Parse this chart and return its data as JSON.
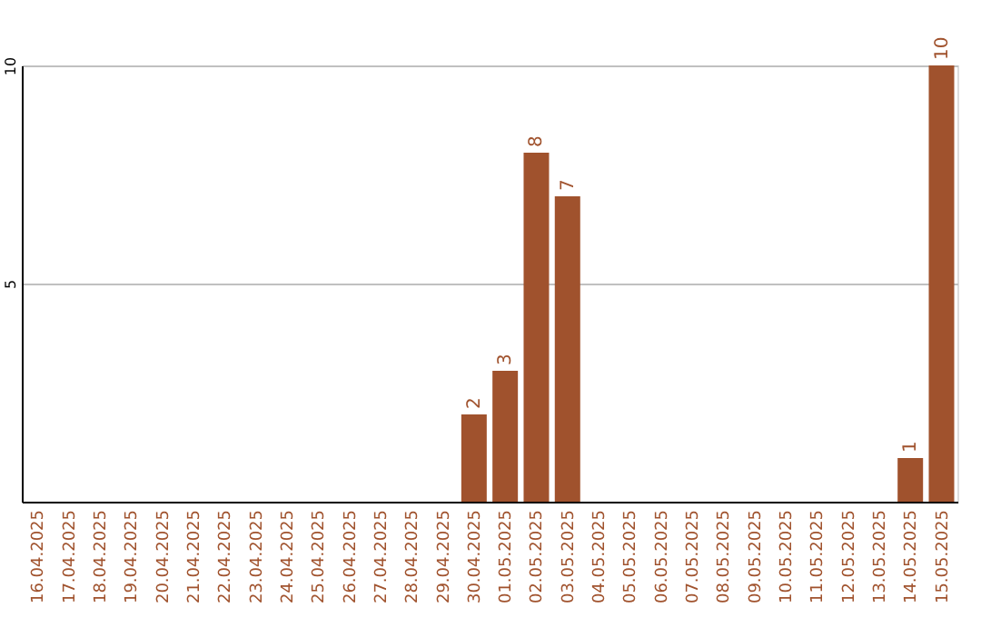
{
  "chart_data": {
    "type": "bar",
    "categories": [
      "16.04.2025",
      "17.04.2025",
      "18.04.2025",
      "19.04.2025",
      "20.04.2025",
      "21.04.2025",
      "22.04.2025",
      "23.04.2025",
      "24.04.2025",
      "25.04.2025",
      "26.04.2025",
      "27.04.2025",
      "28.04.2025",
      "29.04.2025",
      "30.04.2025",
      "01.05.2025",
      "02.05.2025",
      "03.05.2025",
      "04.05.2025",
      "05.05.2025",
      "06.05.2025",
      "07.05.2025",
      "08.05.2025",
      "09.05.2025",
      "10.05.2025",
      "11.05.2025",
      "12.05.2025",
      "13.05.2025",
      "14.05.2025",
      "15.05.2025"
    ],
    "values": [
      0,
      0,
      0,
      0,
      0,
      0,
      0,
      0,
      0,
      0,
      0,
      0,
      0,
      0,
      2,
      3,
      8,
      7,
      0,
      0,
      0,
      0,
      0,
      0,
      0,
      0,
      0,
      0,
      1,
      10
    ],
    "value_labels": [
      null,
      null,
      null,
      null,
      null,
      null,
      null,
      null,
      null,
      null,
      null,
      null,
      null,
      null,
      "2",
      "3",
      "8",
      "7",
      null,
      null,
      null,
      null,
      null,
      null,
      null,
      null,
      null,
      null,
      "1",
      "10"
    ],
    "color": "#a0522d",
    "ylim": [
      0,
      10
    ],
    "yticks": [
      5,
      10
    ],
    "grid": "y"
  }
}
